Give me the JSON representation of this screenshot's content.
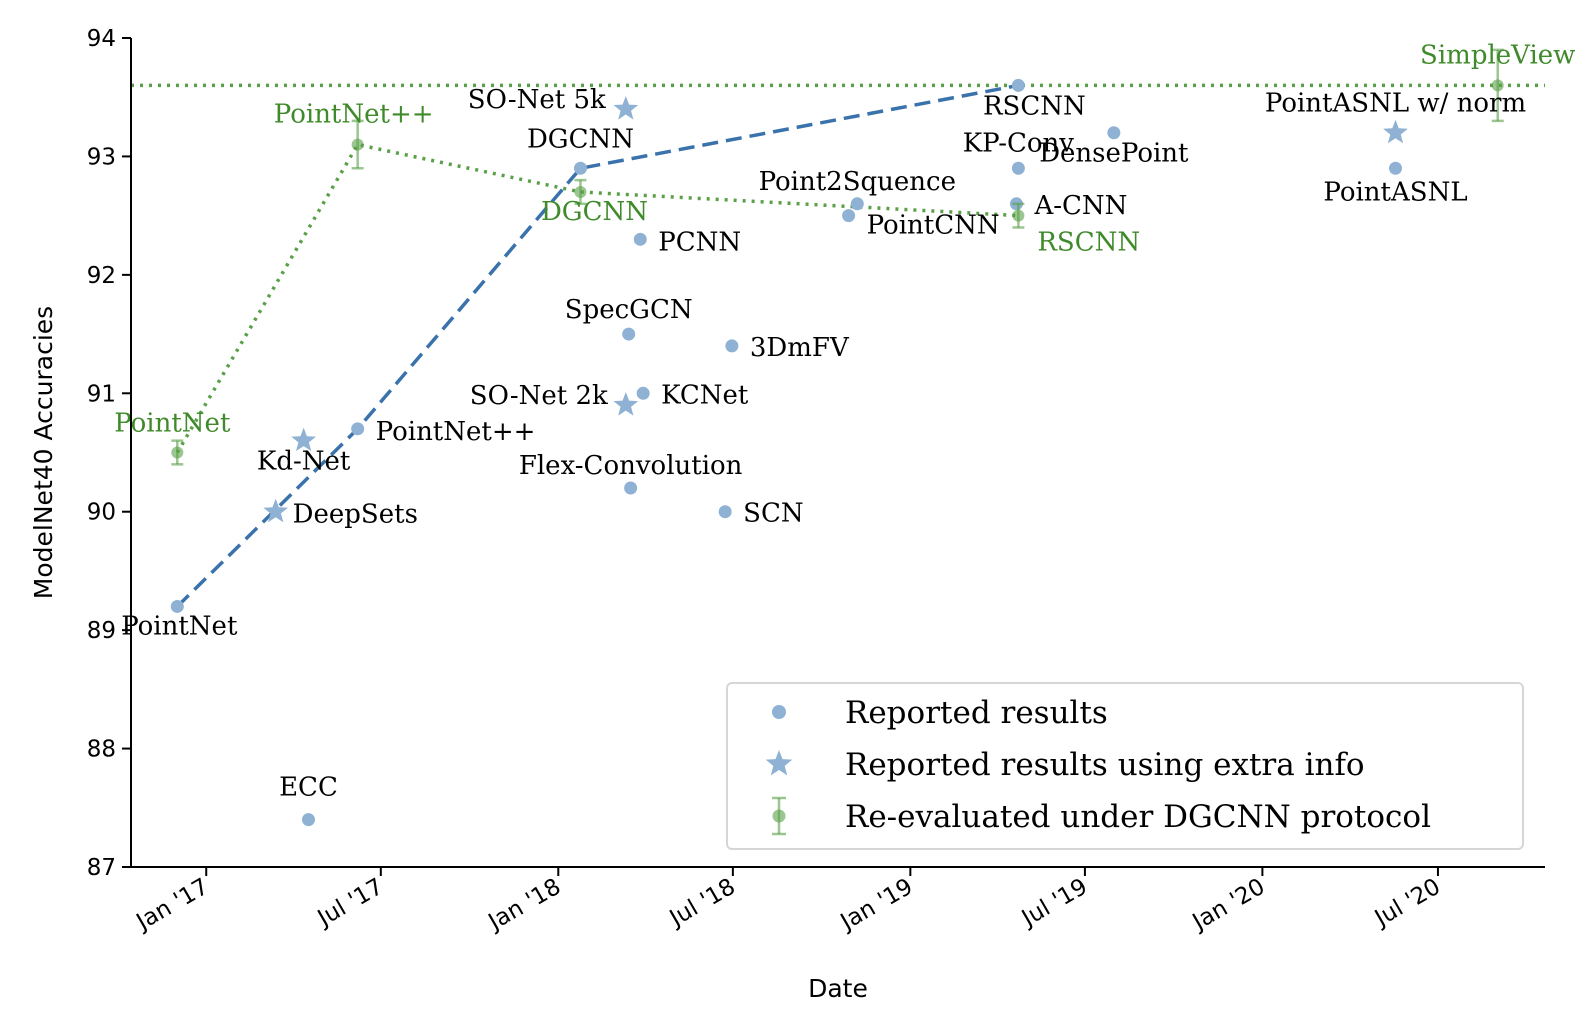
{
  "chart_data": {
    "type": "scatter",
    "xlabel": "Date",
    "ylabel": "ModelNet40 Accuracies",
    "x_type": "date",
    "xlim": [
      "2016-10-15",
      "2020-10-20"
    ],
    "ylim": [
      87,
      94
    ],
    "x_ticks": [
      {
        "date": "2017-01-01",
        "label": "Jan '17"
      },
      {
        "date": "2017-07-01",
        "label": "Jul '17"
      },
      {
        "date": "2018-01-01",
        "label": "Jan '18"
      },
      {
        "date": "2018-07-01",
        "label": "Jul '18"
      },
      {
        "date": "2019-01-01",
        "label": "Jan '19"
      },
      {
        "date": "2019-07-01",
        "label": "Jul '19"
      },
      {
        "date": "2020-01-01",
        "label": "Jan '20"
      },
      {
        "date": "2020-07-01",
        "label": "Jul '20"
      }
    ],
    "y_ticks": [
      87,
      88,
      89,
      90,
      91,
      92,
      93,
      94
    ],
    "colors": {
      "reported": "#8eb1d4",
      "extra": "#8eb1d4",
      "reevaluated": "#5aa048",
      "reevaluated_text": "#3f8a2a",
      "best_line": "#3a72ac"
    },
    "legend": {
      "position": "lower-right",
      "entries": [
        "Reported results",
        "Reported results using extra info",
        "Re-evaluated under DGCNN protocol"
      ]
    },
    "series": [
      {
        "name": "Reported results",
        "marker": "circle",
        "points": [
          {
            "label": "PointNet",
            "date": "2016-12-02",
            "y": 89.2
          },
          {
            "label": "ECC",
            "date": "2017-04-17",
            "y": 87.4
          },
          {
            "label": "PointNet++",
            "date": "2017-06-07",
            "y": 90.7
          },
          {
            "label": "DGCNN",
            "date": "2018-01-24",
            "y": 92.9
          },
          {
            "label": "PCNN",
            "date": "2018-03-27",
            "y": 92.3
          },
          {
            "label": "SpecGCN",
            "date": "2018-03-15",
            "y": 91.5
          },
          {
            "label": "3DmFV",
            "date": "2018-06-30",
            "y": 91.4
          },
          {
            "label": "KCNet",
            "date": "2018-03-30",
            "y": 91.0
          },
          {
            "label": "Flex-Convolution",
            "date": "2018-03-17",
            "y": 90.2
          },
          {
            "label": "SCN",
            "date": "2018-06-23",
            "y": 90.0
          },
          {
            "label": "Point2Squence",
            "date": "2018-11-07",
            "y": 92.6
          },
          {
            "label": "PointCNN",
            "date": "2018-10-29",
            "y": 92.5
          },
          {
            "label": "RSCNN",
            "date": "2019-04-23",
            "y": 93.6
          },
          {
            "label": "KP-Conv",
            "date": "2019-04-23",
            "y": 92.9
          },
          {
            "label": "A-CNN",
            "date": "2019-04-21",
            "y": 92.6
          },
          {
            "label": "DensePoint",
            "date": "2019-07-31",
            "y": 93.2
          },
          {
            "label": "PointASNL",
            "date": "2020-05-18",
            "y": 92.9
          }
        ]
      },
      {
        "name": "Reported results using extra info",
        "marker": "star",
        "points": [
          {
            "label": "DeepSets",
            "date": "2017-03-14",
            "y": 90.0
          },
          {
            "label": "Kd-Net",
            "date": "2017-04-12",
            "y": 90.6
          },
          {
            "label": "SO-Net 5k",
            "date": "2018-03-12",
            "y": 93.4
          },
          {
            "label": "SO-Net 2k",
            "date": "2018-03-12",
            "y": 90.9
          },
          {
            "label": "PointASNL w/ norm",
            "date": "2020-05-18",
            "y": 93.2
          }
        ]
      },
      {
        "name": "Re-evaluated under DGCNN protocol",
        "marker": "errorbar",
        "points": [
          {
            "label": "PointNet",
            "date": "2016-12-02",
            "y": 90.5,
            "err": 0.1
          },
          {
            "label": "PointNet++",
            "date": "2017-06-07",
            "y": 93.1,
            "err": 0.2
          },
          {
            "label": "DGCNN",
            "date": "2018-01-24",
            "y": 92.7,
            "err": 0.1
          },
          {
            "label": "RSCNN",
            "date": "2019-04-23",
            "y": 92.5,
            "err": 0.1
          },
          {
            "label": "SimpleView",
            "date": "2020-09-01",
            "y": 93.6,
            "err": 0.3
          }
        ]
      }
    ]
  }
}
